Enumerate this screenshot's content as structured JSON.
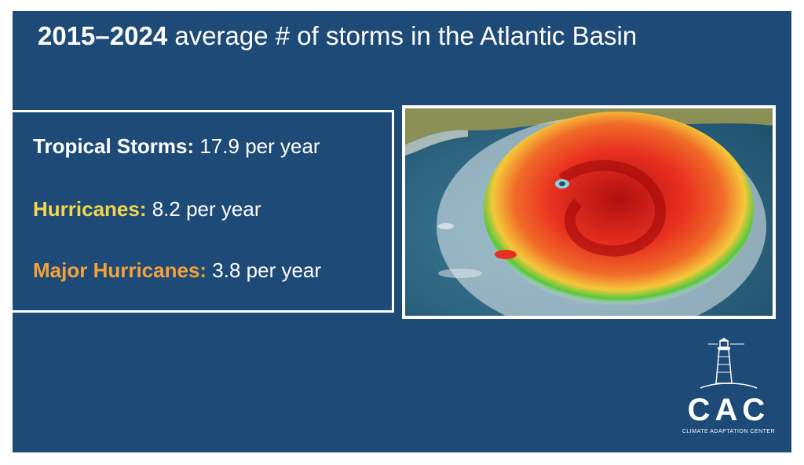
{
  "slide": {
    "title_bold": "2015–2024",
    "title_rest": " average # of storms in the Atlantic Basin",
    "stats": [
      {
        "label": "Tropical Storms:",
        "value": " 17.9 per year",
        "color": "#ffffff"
      },
      {
        "label": "Hurricanes:",
        "value": " 8.2 per year",
        "color": "#f3d54e"
      },
      {
        "label": "Major Hurricanes:",
        "value": " 3.8 per year",
        "color": "#f3a23a"
      }
    ],
    "image": {
      "icon": "hurricane-satellite-image"
    },
    "logo": {
      "icon": "lighthouse-icon",
      "acronym": "CAC",
      "name": "CLIMATE ADAPTATION CENTER"
    }
  },
  "colors": {
    "background": "#1e4a78",
    "text": "#ffffff",
    "hurricanes": "#f3d54e",
    "major_hurricanes": "#f3a23a"
  }
}
